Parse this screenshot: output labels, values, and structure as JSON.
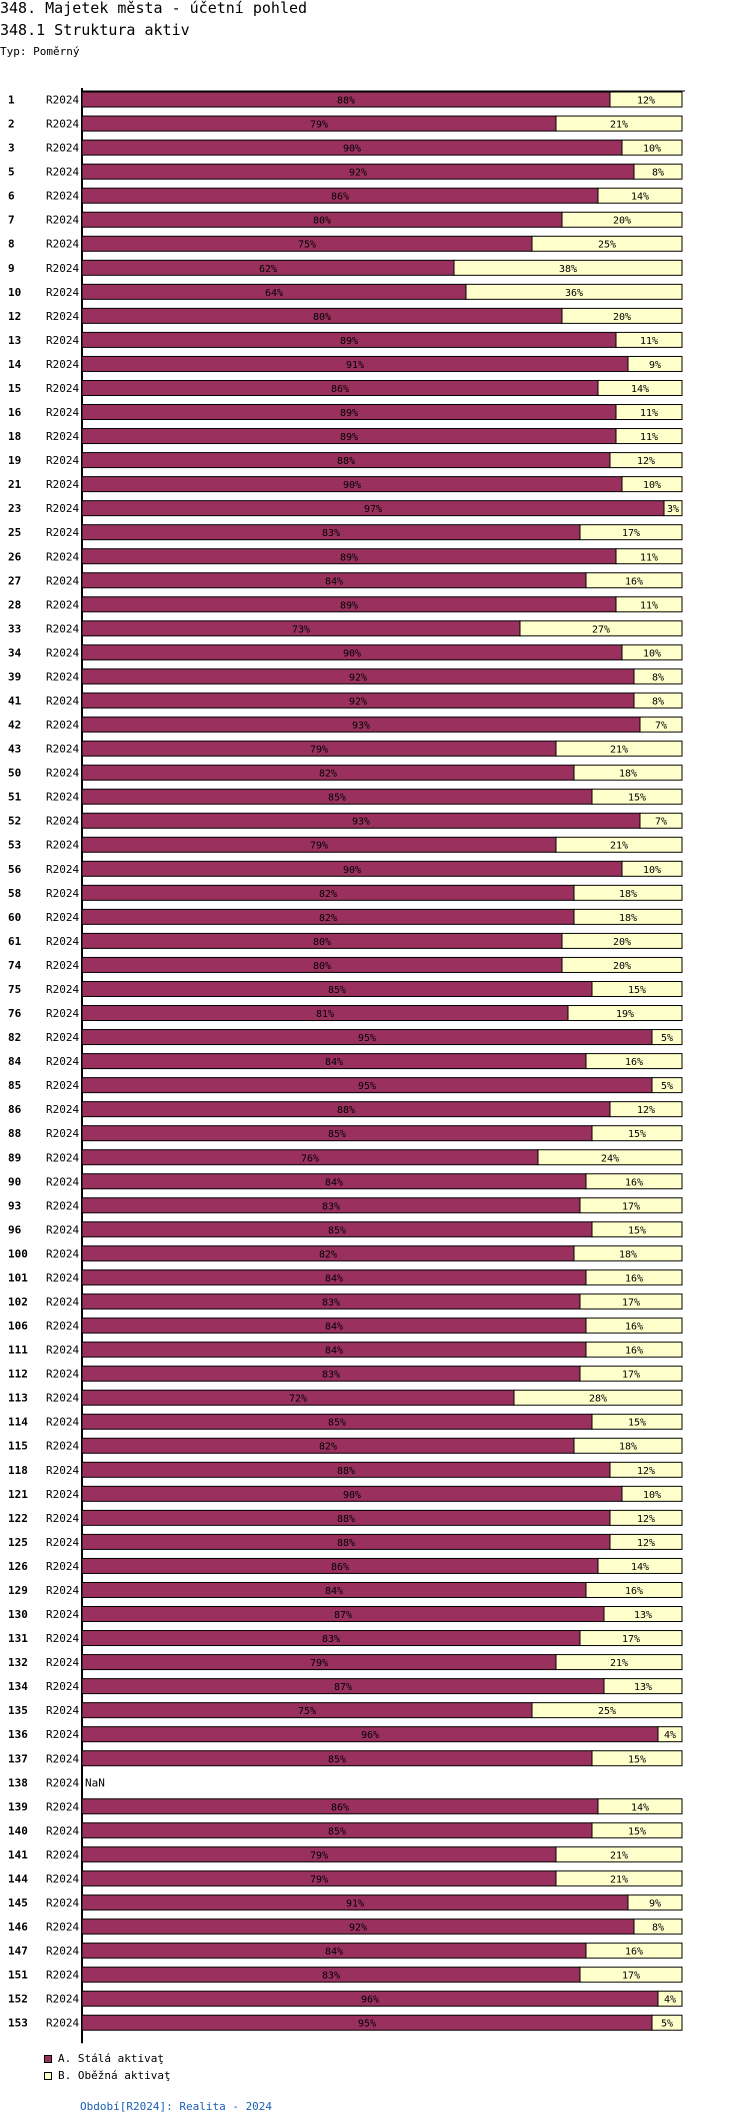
{
  "header": {
    "title": "348. Majetek města - účetní pohled",
    "subtitle": "348.1 Struktura aktiv",
    "type_label": "Typ: Poměrný"
  },
  "colors": {
    "series_a": "#99305e",
    "series_b": "#ffffcc",
    "border": "#000000",
    "footer_link": "#1a5fb4"
  },
  "legend": [
    {
      "label": "A. Stálá aktivaţ",
      "color": "#99305e"
    },
    {
      "label": "B. Oběžná aktivaţ",
      "color": "#ffffcc"
    }
  ],
  "footer": {
    "link_text": "Období[R2024]: Realita - 2024"
  },
  "chart_data": {
    "type": "bar",
    "orientation": "horizontal",
    "stacked": true,
    "normalized": true,
    "period": "R2024",
    "unit": "%",
    "xlim": [
      0,
      100
    ],
    "categories": [
      "1",
      "2",
      "3",
      "5",
      "6",
      "7",
      "8",
      "9",
      "10",
      "12",
      "13",
      "14",
      "15",
      "16",
      "18",
      "19",
      "21",
      "23",
      "25",
      "26",
      "27",
      "28",
      "33",
      "34",
      "39",
      "41",
      "42",
      "43",
      "50",
      "51",
      "52",
      "53",
      "56",
      "58",
      "60",
      "61",
      "74",
      "75",
      "76",
      "82",
      "84",
      "85",
      "86",
      "88",
      "89",
      "90",
      "93",
      "96",
      "100",
      "101",
      "102",
      "106",
      "111",
      "112",
      "113",
      "114",
      "115",
      "118",
      "121",
      "122",
      "125",
      "126",
      "129",
      "130",
      "131",
      "132",
      "134",
      "135",
      "136",
      "137",
      "138",
      "139",
      "140",
      "141",
      "144",
      "145",
      "146",
      "147",
      "151",
      "152",
      "153"
    ],
    "series": [
      {
        "name": "A. Stálá aktivaţ",
        "values": [
          88,
          79,
          90,
          92,
          86,
          80,
          75,
          62,
          64,
          80,
          89,
          91,
          86,
          89,
          89,
          88,
          90,
          97,
          83,
          89,
          84,
          89,
          73,
          90,
          92,
          92,
          93,
          79,
          82,
          85,
          93,
          79,
          90,
          82,
          82,
          80,
          80,
          85,
          81,
          95,
          84,
          95,
          88,
          85,
          76,
          84,
          83,
          85,
          82,
          84,
          83,
          84,
          84,
          83,
          72,
          85,
          82,
          88,
          90,
          88,
          88,
          86,
          84,
          87,
          83,
          79,
          87,
          75,
          96,
          85,
          null,
          86,
          85,
          79,
          79,
          91,
          92,
          84,
          83,
          96,
          95
        ]
      },
      {
        "name": "B. Oběžná aktivaţ",
        "values": [
          12,
          21,
          10,
          8,
          14,
          20,
          25,
          38,
          36,
          20,
          11,
          9,
          14,
          11,
          11,
          12,
          10,
          3,
          17,
          11,
          16,
          11,
          27,
          10,
          8,
          8,
          7,
          21,
          18,
          15,
          7,
          21,
          10,
          18,
          18,
          20,
          20,
          15,
          19,
          5,
          16,
          5,
          12,
          15,
          24,
          16,
          17,
          15,
          18,
          16,
          17,
          16,
          16,
          17,
          28,
          15,
          18,
          12,
          10,
          12,
          12,
          14,
          16,
          13,
          17,
          21,
          13,
          25,
          4,
          15,
          null,
          14,
          15,
          21,
          21,
          9,
          8,
          16,
          17,
          4,
          5
        ]
      }
    ],
    "missing_label": "NaN"
  }
}
